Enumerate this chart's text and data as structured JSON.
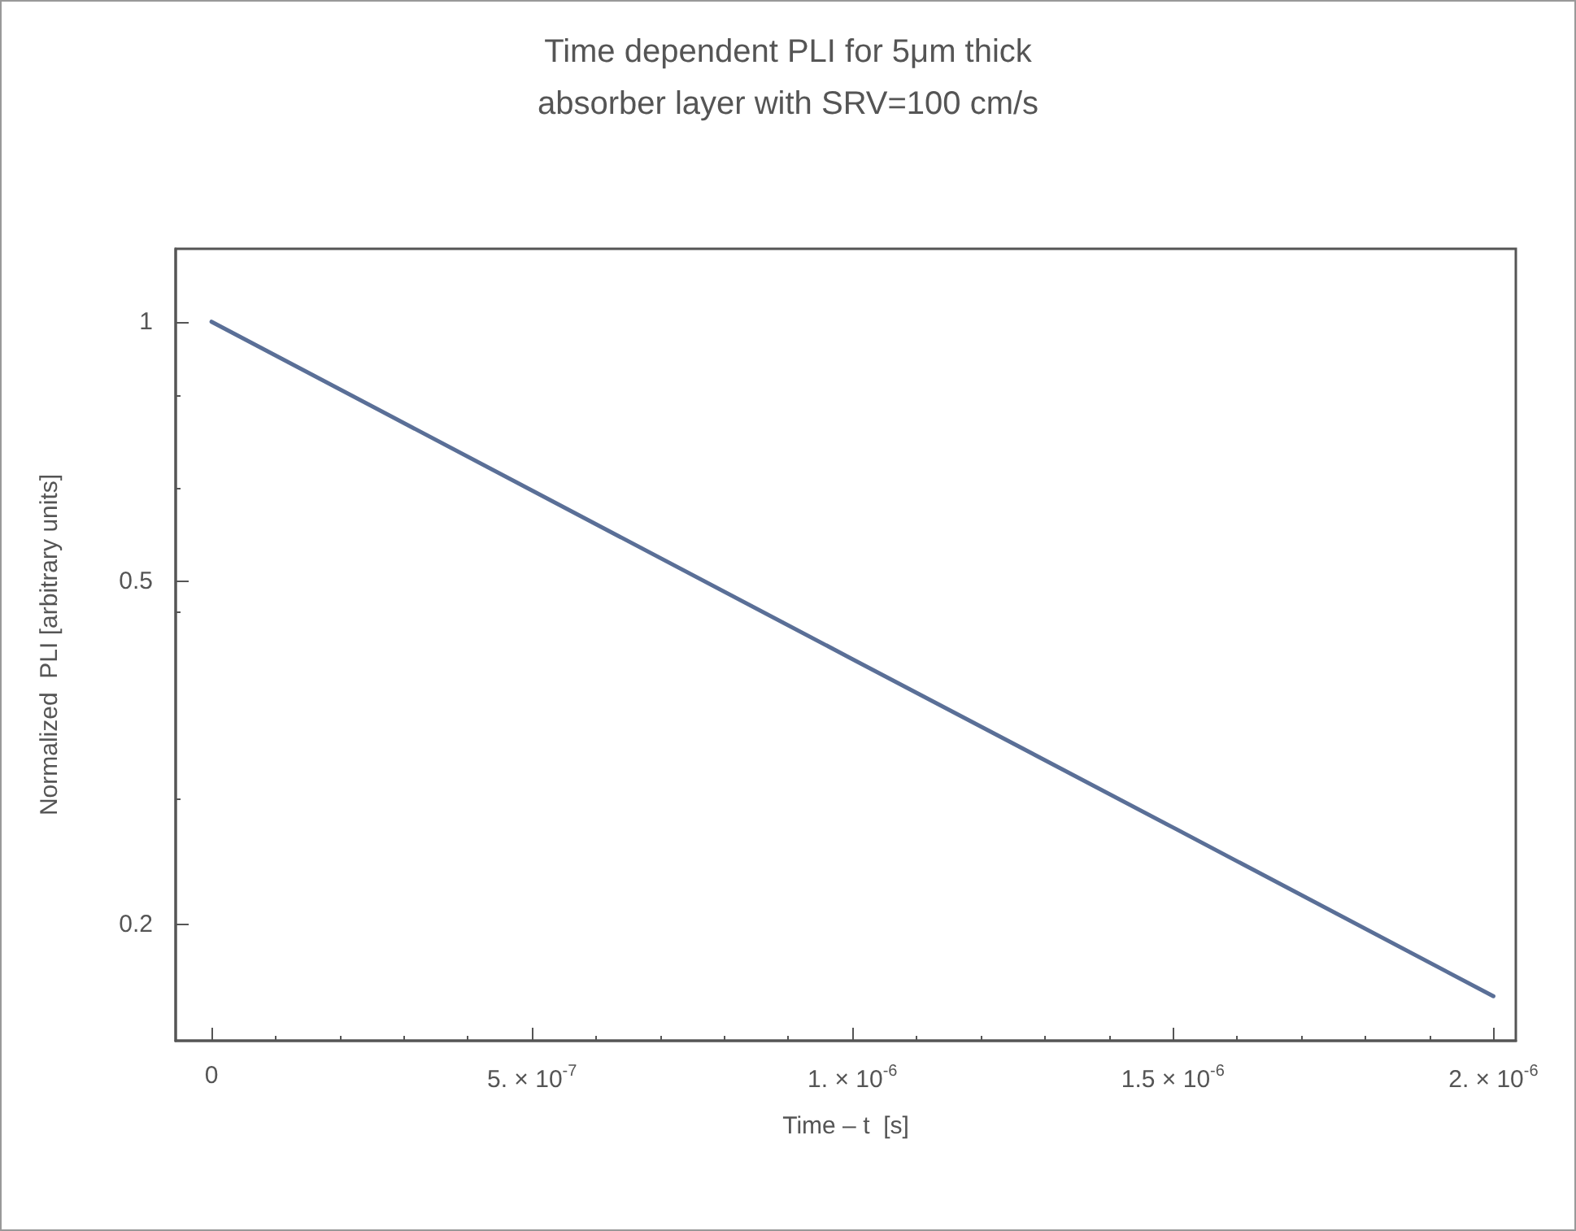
{
  "chart_data": {
    "type": "line",
    "title": "Time dependent PLI for 5μm thick\nabsorber layer with SRV=100 cm/s",
    "xlabel": "Time – t  [s]",
    "ylabel": "Normalized  PLI [arbitrary units]",
    "x": [
      0,
      5e-07,
      1e-06,
      1.5e-06,
      2e-06
    ],
    "series": [
      {
        "color": "#5a6f97",
        "values": [
          1,
          0.637,
          0.406,
          0.259,
          0.165
        ]
      }
    ],
    "xlim": [
      -5.6e-08,
      2.035e-06
    ],
    "xticks": [
      0,
      {
        "value": 5e-07,
        "label": "5. × 10$^{-7}$"
      },
      {
        "value": 1e-06,
        "label": "1. × 10$^{-6}$"
      },
      {
        "value": 1.5e-06,
        "label": "1.5 × 10$^{-6}$"
      },
      {
        "value": 2e-06,
        "label": "2. × 10$^{-6}$"
      }
    ],
    "ylim": [
      0.1465,
      1.215
    ],
    "yticks": [
      0.2,
      0.5,
      1
    ],
    "log": "y",
    "grid": false,
    "marker": "none",
    "line_style": "solid"
  }
}
